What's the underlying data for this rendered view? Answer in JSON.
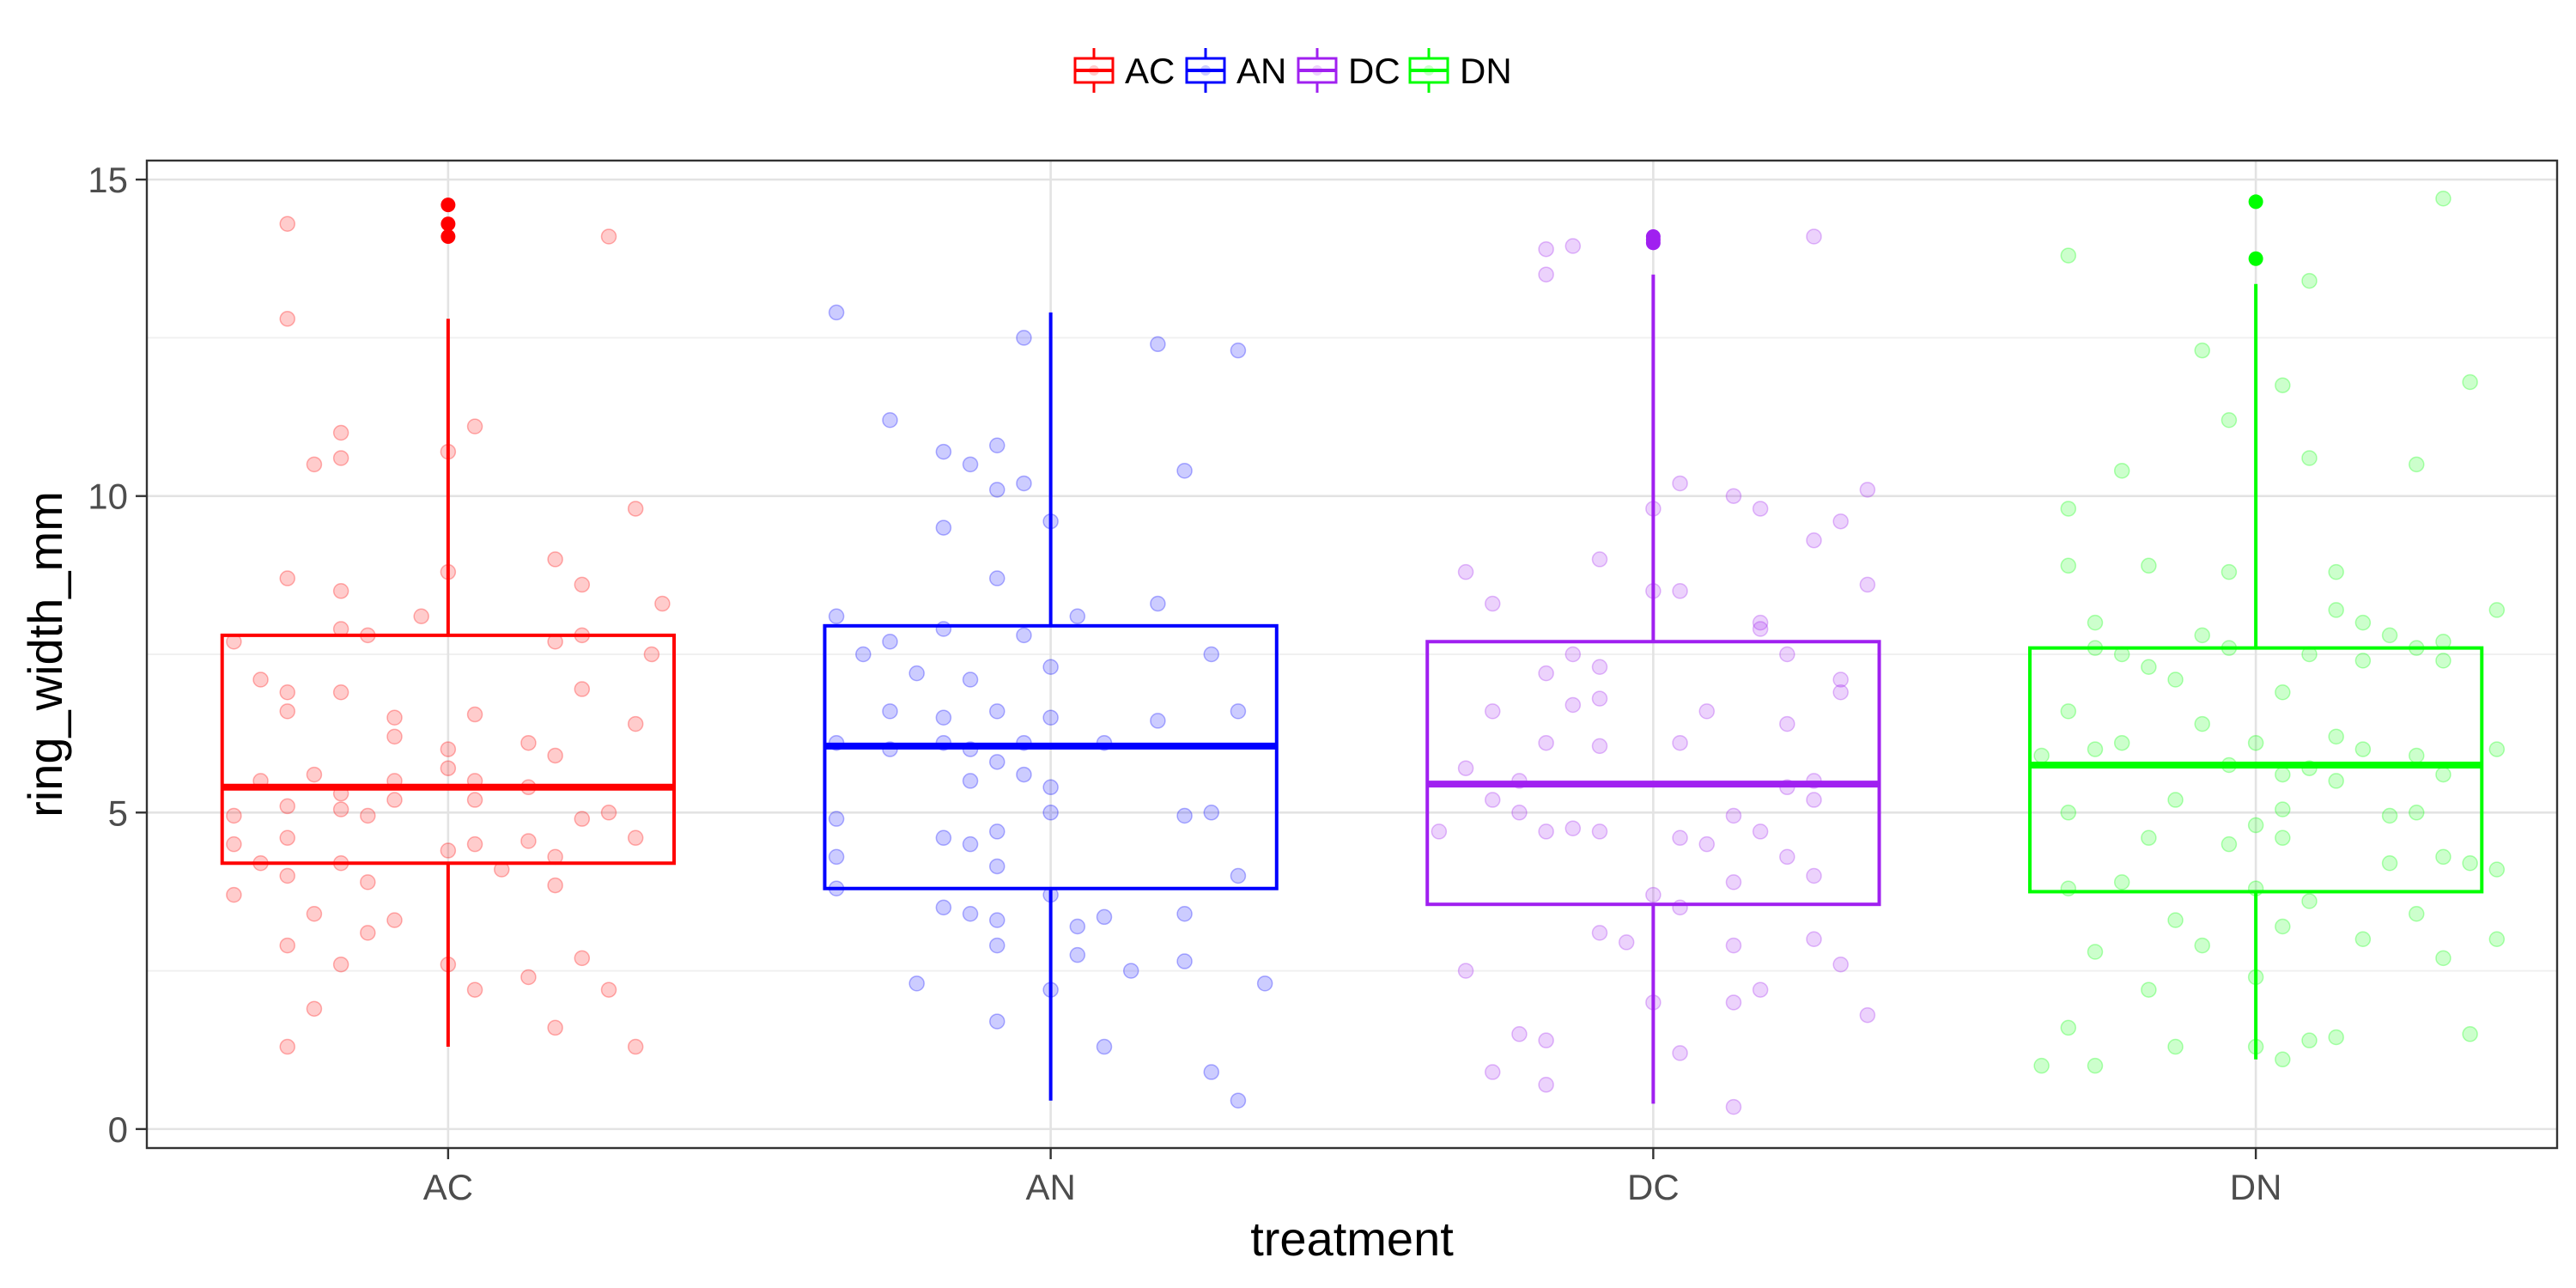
{
  "chart_data": {
    "type": "boxplot",
    "xlabel": "treatment",
    "ylabel": "ring_width_mm",
    "ylim": [
      -0.3,
      15.3
    ],
    "yticks": [
      0,
      5,
      10,
      15
    ],
    "categories": [
      "AC",
      "AN",
      "DC",
      "DN"
    ],
    "grid": true,
    "legend": {
      "position": "top",
      "entries": [
        "AC",
        "AN",
        "DC",
        "DN"
      ]
    },
    "colors": {
      "AC": "#ff0000",
      "AN": "#0000ff",
      "DC": "#a020f0",
      "DN": "#00ff00"
    },
    "series": [
      {
        "name": "AC",
        "box": {
          "lower_whisker": 1.3,
          "q1": 4.2,
          "median": 5.4,
          "q3": 7.8,
          "upper_whisker": 12.8
        },
        "outliers": [
          14.1,
          14.3,
          14.6
        ],
        "points": [
          [
            -0.3,
            14.3
          ],
          [
            0.3,
            14.1
          ],
          [
            -0.3,
            12.8
          ],
          [
            0.05,
            11.1
          ],
          [
            -0.2,
            11.0
          ],
          [
            0.0,
            10.7
          ],
          [
            -0.2,
            10.6
          ],
          [
            -0.25,
            10.5
          ],
          [
            0.35,
            9.8
          ],
          [
            0.2,
            9.0
          ],
          [
            -0.3,
            8.7
          ],
          [
            0.0,
            8.8
          ],
          [
            0.25,
            8.6
          ],
          [
            0.4,
            8.3
          ],
          [
            -0.2,
            8.5
          ],
          [
            -0.05,
            8.1
          ],
          [
            -0.2,
            7.9
          ],
          [
            0.25,
            7.8
          ],
          [
            -0.4,
            7.7
          ],
          [
            -0.15,
            7.8
          ],
          [
            0.2,
            7.7
          ],
          [
            0.38,
            7.5
          ],
          [
            -0.35,
            7.1
          ],
          [
            -0.3,
            6.9
          ],
          [
            -0.2,
            6.9
          ],
          [
            0.25,
            6.95
          ],
          [
            -0.1,
            6.5
          ],
          [
            0.05,
            6.55
          ],
          [
            0.35,
            6.4
          ],
          [
            -0.3,
            6.6
          ],
          [
            -0.1,
            6.2
          ],
          [
            0.15,
            6.1
          ],
          [
            0.0,
            6.0
          ],
          [
            0.2,
            5.9
          ],
          [
            0.0,
            5.7
          ],
          [
            -0.25,
            5.6
          ],
          [
            0.05,
            5.5
          ],
          [
            -0.35,
            5.5
          ],
          [
            -0.1,
            5.5
          ],
          [
            -0.2,
            5.3
          ],
          [
            0.15,
            5.4
          ],
          [
            -0.1,
            5.2
          ],
          [
            0.05,
            5.2
          ],
          [
            -0.3,
            5.1
          ],
          [
            0.3,
            5.0
          ],
          [
            -0.2,
            5.05
          ],
          [
            -0.4,
            4.95
          ],
          [
            -0.15,
            4.95
          ],
          [
            0.25,
            4.9
          ],
          [
            -0.3,
            4.6
          ],
          [
            0.35,
            4.6
          ],
          [
            -0.4,
            4.5
          ],
          [
            0.05,
            4.5
          ],
          [
            0.0,
            4.4
          ],
          [
            0.15,
            4.55
          ],
          [
            -0.2,
            4.2
          ],
          [
            0.2,
            4.3
          ],
          [
            -0.35,
            4.2
          ],
          [
            -0.3,
            4.0
          ],
          [
            0.1,
            4.1
          ],
          [
            -0.15,
            3.9
          ],
          [
            0.2,
            3.85
          ],
          [
            -0.4,
            3.7
          ],
          [
            -0.25,
            3.4
          ],
          [
            -0.1,
            3.3
          ],
          [
            -0.15,
            3.1
          ],
          [
            -0.3,
            2.9
          ],
          [
            0.25,
            2.7
          ],
          [
            -0.2,
            2.6
          ],
          [
            0.0,
            2.6
          ],
          [
            0.15,
            2.4
          ],
          [
            0.3,
            2.2
          ],
          [
            0.05,
            2.2
          ],
          [
            -0.25,
            1.9
          ],
          [
            0.2,
            1.6
          ],
          [
            -0.3,
            1.3
          ],
          [
            0.35,
            1.3
          ]
        ]
      },
      {
        "name": "AN",
        "box": {
          "lower_whisker": 0.45,
          "q1": 3.8,
          "median": 6.05,
          "q3": 7.95,
          "upper_whisker": 12.9
        },
        "outliers": [],
        "points": [
          [
            -0.4,
            12.9
          ],
          [
            -0.05,
            12.5
          ],
          [
            0.2,
            12.4
          ],
          [
            0.35,
            12.3
          ],
          [
            -0.3,
            11.2
          ],
          [
            -0.2,
            10.7
          ],
          [
            -0.1,
            10.8
          ],
          [
            -0.15,
            10.5
          ],
          [
            -0.1,
            10.1
          ],
          [
            -0.05,
            10.2
          ],
          [
            0.25,
            10.4
          ],
          [
            0.0,
            9.6
          ],
          [
            -0.2,
            9.5
          ],
          [
            -0.1,
            8.7
          ],
          [
            0.05,
            8.1
          ],
          [
            0.2,
            8.3
          ],
          [
            -0.4,
            8.1
          ],
          [
            -0.2,
            7.9
          ],
          [
            -0.3,
            7.7
          ],
          [
            -0.05,
            7.8
          ],
          [
            0.3,
            7.5
          ],
          [
            -0.35,
            7.5
          ],
          [
            0.0,
            7.3
          ],
          [
            -0.25,
            7.2
          ],
          [
            -0.15,
            7.1
          ],
          [
            -0.1,
            6.6
          ],
          [
            -0.2,
            6.5
          ],
          [
            -0.3,
            6.6
          ],
          [
            0.0,
            6.5
          ],
          [
            0.2,
            6.45
          ],
          [
            0.35,
            6.6
          ],
          [
            -0.4,
            6.1
          ],
          [
            -0.2,
            6.1
          ],
          [
            -0.15,
            6.0
          ],
          [
            -0.05,
            6.1
          ],
          [
            0.1,
            6.1
          ],
          [
            -0.3,
            6.0
          ],
          [
            -0.1,
            5.8
          ],
          [
            -0.05,
            5.6
          ],
          [
            0.0,
            5.4
          ],
          [
            -0.15,
            5.5
          ],
          [
            -0.4,
            4.9
          ],
          [
            0.0,
            5.0
          ],
          [
            0.25,
            4.95
          ],
          [
            0.3,
            5.0
          ],
          [
            -0.2,
            4.6
          ],
          [
            -0.1,
            4.7
          ],
          [
            -0.15,
            4.5
          ],
          [
            -0.4,
            4.3
          ],
          [
            -0.1,
            4.15
          ],
          [
            0.35,
            4.0
          ],
          [
            -0.4,
            3.8
          ],
          [
            0.0,
            3.7
          ],
          [
            -0.2,
            3.5
          ],
          [
            -0.15,
            3.4
          ],
          [
            -0.1,
            3.3
          ],
          [
            0.1,
            3.35
          ],
          [
            0.25,
            3.4
          ],
          [
            0.05,
            3.2
          ],
          [
            -0.1,
            2.9
          ],
          [
            0.05,
            2.75
          ],
          [
            0.15,
            2.5
          ],
          [
            0.25,
            2.65
          ],
          [
            -0.25,
            2.3
          ],
          [
            0.0,
            2.2
          ],
          [
            0.4,
            2.3
          ],
          [
            -0.1,
            1.7
          ],
          [
            0.1,
            1.3
          ],
          [
            0.3,
            0.9
          ],
          [
            0.35,
            0.45
          ]
        ]
      },
      {
        "name": "DC",
        "box": {
          "lower_whisker": 0.4,
          "q1": 3.55,
          "median": 5.45,
          "q3": 7.7,
          "upper_whisker": 13.5
        },
        "outliers": [
          14.0,
          14.05,
          14.1
        ],
        "points": [
          [
            -0.2,
            13.9
          ],
          [
            -0.15,
            13.95
          ],
          [
            -0.2,
            13.5
          ],
          [
            0.3,
            14.1
          ],
          [
            0.05,
            10.2
          ],
          [
            0.15,
            10.0
          ],
          [
            0.4,
            10.1
          ],
          [
            0.0,
            9.8
          ],
          [
            0.2,
            9.8
          ],
          [
            0.35,
            9.6
          ],
          [
            -0.1,
            9.0
          ],
          [
            0.3,
            9.3
          ],
          [
            -0.35,
            8.8
          ],
          [
            0.0,
            8.5
          ],
          [
            0.4,
            8.6
          ],
          [
            0.05,
            8.5
          ],
          [
            -0.3,
            8.3
          ],
          [
            0.2,
            8.0
          ],
          [
            -0.15,
            7.5
          ],
          [
            -0.2,
            7.2
          ],
          [
            -0.1,
            7.3
          ],
          [
            0.25,
            7.5
          ],
          [
            0.35,
            7.1
          ],
          [
            0.2,
            7.9
          ],
          [
            -0.3,
            6.6
          ],
          [
            -0.15,
            6.7
          ],
          [
            -0.1,
            6.8
          ],
          [
            0.1,
            6.6
          ],
          [
            0.25,
            6.4
          ],
          [
            0.35,
            6.9
          ],
          [
            -0.2,
            6.1
          ],
          [
            -0.1,
            6.05
          ],
          [
            0.05,
            6.1
          ],
          [
            -0.35,
            5.7
          ],
          [
            -0.25,
            5.5
          ],
          [
            0.25,
            5.4
          ],
          [
            0.3,
            5.5
          ],
          [
            -0.3,
            5.2
          ],
          [
            0.3,
            5.2
          ],
          [
            -0.25,
            5.0
          ],
          [
            0.15,
            4.95
          ],
          [
            0.2,
            4.7
          ],
          [
            -0.2,
            4.7
          ],
          [
            -0.15,
            4.75
          ],
          [
            -0.1,
            4.7
          ],
          [
            0.05,
            4.6
          ],
          [
            0.1,
            4.5
          ],
          [
            -0.4,
            4.7
          ],
          [
            0.25,
            4.3
          ],
          [
            0.15,
            3.9
          ],
          [
            0.0,
            3.7
          ],
          [
            0.05,
            3.5
          ],
          [
            0.3,
            4.0
          ],
          [
            -0.1,
            3.1
          ],
          [
            -0.05,
            2.95
          ],
          [
            0.15,
            2.9
          ],
          [
            0.3,
            3.0
          ],
          [
            0.35,
            2.6
          ],
          [
            -0.35,
            2.5
          ],
          [
            0.0,
            2.0
          ],
          [
            0.15,
            2.0
          ],
          [
            0.2,
            2.2
          ],
          [
            0.4,
            1.8
          ],
          [
            -0.25,
            1.5
          ],
          [
            -0.2,
            1.4
          ],
          [
            0.05,
            1.2
          ],
          [
            -0.3,
            0.9
          ],
          [
            -0.2,
            0.7
          ],
          [
            0.15,
            0.35
          ]
        ]
      },
      {
        "name": "DN",
        "box": {
          "lower_whisker": 1.1,
          "q1": 3.75,
          "median": 5.75,
          "q3": 7.6,
          "upper_whisker": 13.35
        },
        "outliers": [
          13.75,
          14.65
        ],
        "points": [
          [
            -0.35,
            13.8
          ],
          [
            0.35,
            14.7
          ],
          [
            0.1,
            13.4
          ],
          [
            -0.1,
            12.3
          ],
          [
            0.05,
            11.75
          ],
          [
            -0.05,
            11.2
          ],
          [
            0.4,
            11.8
          ],
          [
            0.1,
            10.6
          ],
          [
            0.3,
            10.5
          ],
          [
            -0.25,
            10.4
          ],
          [
            -0.35,
            9.8
          ],
          [
            -0.2,
            8.9
          ],
          [
            -0.05,
            8.8
          ],
          [
            0.15,
            8.8
          ],
          [
            -0.35,
            8.9
          ],
          [
            0.15,
            8.2
          ],
          [
            0.45,
            8.2
          ],
          [
            -0.3,
            8.0
          ],
          [
            0.2,
            8.0
          ],
          [
            0.25,
            7.8
          ],
          [
            -0.1,
            7.8
          ],
          [
            -0.05,
            7.6
          ],
          [
            0.1,
            7.5
          ],
          [
            0.35,
            7.7
          ],
          [
            -0.3,
            7.6
          ],
          [
            -0.25,
            7.5
          ],
          [
            0.3,
            7.6
          ],
          [
            -0.2,
            7.3
          ],
          [
            0.2,
            7.4
          ],
          [
            0.35,
            7.4
          ],
          [
            -0.15,
            7.1
          ],
          [
            -0.35,
            6.6
          ],
          [
            -0.1,
            6.4
          ],
          [
            0.05,
            6.9
          ],
          [
            0.15,
            6.2
          ],
          [
            -0.25,
            6.1
          ],
          [
            -0.3,
            6.0
          ],
          [
            0.0,
            6.1
          ],
          [
            0.2,
            6.0
          ],
          [
            0.3,
            5.9
          ],
          [
            0.45,
            6.0
          ],
          [
            -0.4,
            5.9
          ],
          [
            0.1,
            5.7
          ],
          [
            -0.05,
            5.75
          ],
          [
            0.05,
            5.6
          ],
          [
            0.15,
            5.5
          ],
          [
            0.35,
            5.6
          ],
          [
            -0.15,
            5.2
          ],
          [
            0.05,
            5.05
          ],
          [
            -0.35,
            5.0
          ],
          [
            0.0,
            4.8
          ],
          [
            0.25,
            4.95
          ],
          [
            0.3,
            5.0
          ],
          [
            -0.2,
            4.6
          ],
          [
            -0.05,
            4.5
          ],
          [
            0.05,
            4.6
          ],
          [
            0.35,
            4.3
          ],
          [
            0.4,
            4.2
          ],
          [
            0.25,
            4.2
          ],
          [
            0.45,
            4.1
          ],
          [
            -0.35,
            3.8
          ],
          [
            -0.25,
            3.9
          ],
          [
            0.0,
            3.8
          ],
          [
            0.1,
            3.6
          ],
          [
            0.3,
            3.4
          ],
          [
            -0.15,
            3.3
          ],
          [
            0.05,
            3.2
          ],
          [
            0.2,
            3.0
          ],
          [
            0.45,
            3.0
          ],
          [
            -0.3,
            2.8
          ],
          [
            -0.1,
            2.9
          ],
          [
            0.0,
            2.4
          ],
          [
            0.35,
            2.7
          ],
          [
            -0.2,
            2.2
          ],
          [
            -0.35,
            1.6
          ],
          [
            0.0,
            1.3
          ],
          [
            0.1,
            1.4
          ],
          [
            0.15,
            1.45
          ],
          [
            0.4,
            1.5
          ],
          [
            -0.15,
            1.3
          ],
          [
            -0.4,
            1.0
          ],
          [
            -0.3,
            1.0
          ],
          [
            0.05,
            1.1
          ]
        ]
      }
    ]
  }
}
